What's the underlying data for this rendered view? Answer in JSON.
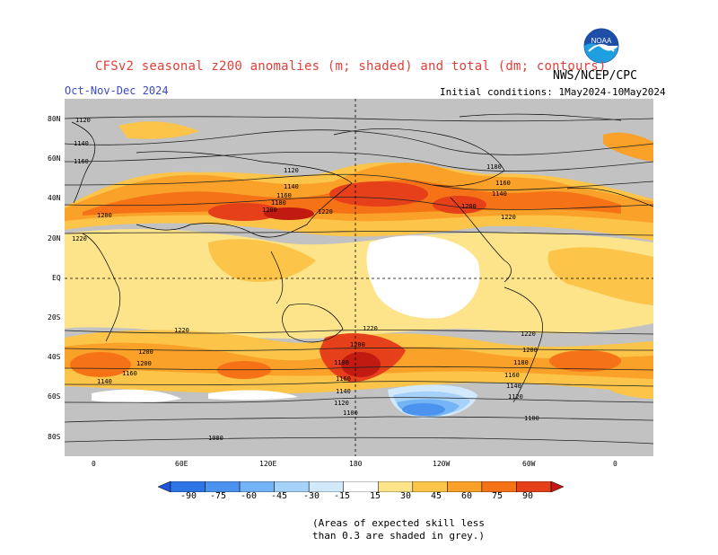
{
  "title": "CFSv2 seasonal z200 anomalies (m; shaded) and total (dm; contours)",
  "season": "Oct-Nov-Dec 2024",
  "initial_conditions": "Initial conditions: 1May2024-10May2024",
  "agency": "NWS/NCEP/CPC",
  "logo_text": "NOAA",
  "lat_labels": [
    "80N",
    "60N",
    "40N",
    "20N",
    "EQ",
    "20S",
    "40S",
    "60S",
    "80S"
  ],
  "lon_labels": [
    "0",
    "60E",
    "120E",
    "180",
    "120W",
    "60W",
    "0"
  ],
  "colorbar": {
    "labels": [
      "-90",
      "-75",
      "-60",
      "-45",
      "-30",
      "-15",
      "15",
      "30",
      "45",
      "60",
      "75",
      "90"
    ],
    "colors": [
      "#1f55d8",
      "#2f75e5",
      "#4b93ef",
      "#74b3f5",
      "#a6d1f8",
      "#d2e9fb",
      "#ffffff",
      "#fde48a",
      "#fcc449",
      "#f9a128",
      "#f57216",
      "#e5401a",
      "#c11a10"
    ]
  },
  "contour_labels": [
    "1120",
    "1140",
    "1160",
    "1180",
    "1200",
    "1220",
    "1120",
    "1140",
    "1160",
    "1180",
    "1200",
    "1220",
    "1220",
    "1200",
    "1180",
    "1160",
    "1140",
    "1120",
    "1100",
    "1080",
    "1220",
    "1200",
    "1220",
    "1200",
    "1180",
    "1160",
    "1140",
    "1120",
    "1100"
  ],
  "note_lines": [
    "(Areas of expected skill less",
    "than 0.3 are shaded in grey.)"
  ]
}
